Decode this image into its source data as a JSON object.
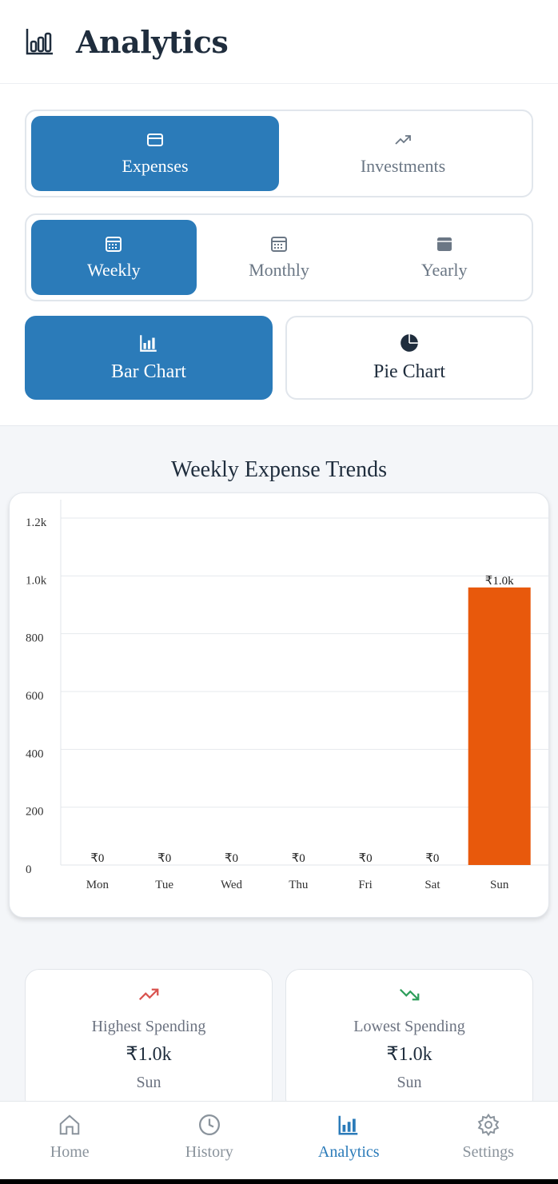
{
  "header": {
    "title": "Analytics"
  },
  "type_toggle": {
    "options": [
      "Expenses",
      "Investments"
    ],
    "active": 0
  },
  "period_toggle": {
    "options": [
      "Weekly",
      "Monthly",
      "Yearly"
    ],
    "active": 0
  },
  "chart_toggle": {
    "options": [
      "Bar Chart",
      "Pie Chart"
    ],
    "active": 0
  },
  "chart_data": {
    "type": "bar",
    "title": "Weekly Expense Trends",
    "categories": [
      "Mon",
      "Tue",
      "Wed",
      "Thu",
      "Fri",
      "Sat",
      "Sun"
    ],
    "values": [
      0,
      0,
      0,
      0,
      0,
      0,
      960
    ],
    "value_labels": [
      "₹0",
      "₹0",
      "₹0",
      "₹0",
      "₹0",
      "₹0",
      "₹1.0k"
    ],
    "color": "#e8590c",
    "ylim": [
      0,
      1200
    ],
    "yticks": [
      0,
      200,
      400,
      600,
      800,
      {
        "value": 1000,
        "label": "1.0k"
      },
      {
        "value": 1200,
        "label": "1.2k"
      }
    ],
    "grid": true
  },
  "stats": [
    {
      "label": "Highest Spending",
      "value": "₹1.0k",
      "day": "Sun"
    },
    {
      "label": "Lowest Spending",
      "value": "₹1.0k",
      "day": "Sun"
    }
  ],
  "nav": {
    "items": [
      "Home",
      "History",
      "Analytics",
      "Settings"
    ],
    "active": 2
  }
}
